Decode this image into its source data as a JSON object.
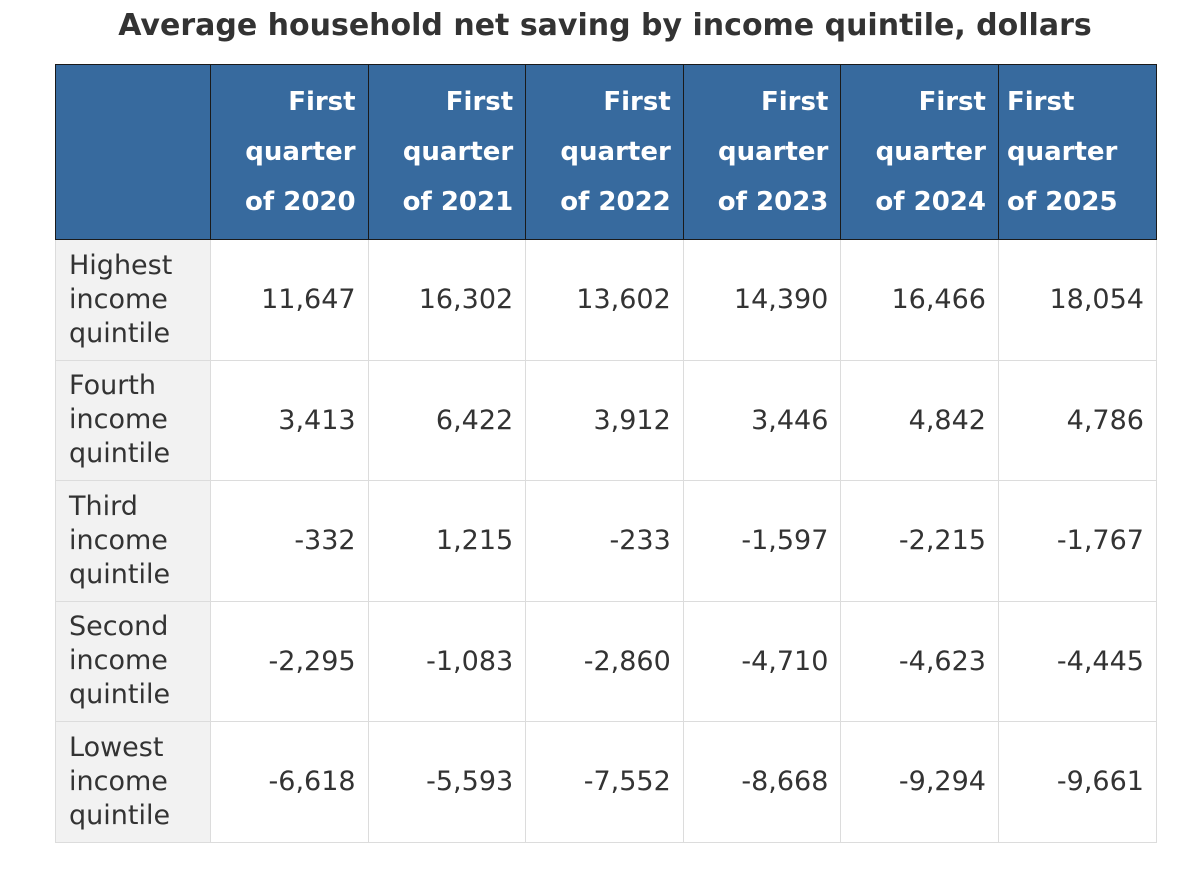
{
  "title": "Average household net saving by income quintile, dollars",
  "table": {
    "columns": [
      [
        "First",
        "quarter",
        "of 2020"
      ],
      [
        "First",
        "quarter",
        "of 2021"
      ],
      [
        "First",
        "quarter",
        "of 2022"
      ],
      [
        "First",
        "quarter",
        "of 2023"
      ],
      [
        "First",
        "quarter",
        "of 2024"
      ],
      [
        "First",
        "quarter",
        "of 2025"
      ]
    ],
    "rows": [
      {
        "label": [
          "Highest",
          "income",
          "quintile"
        ],
        "values": [
          "11,647",
          "16,302",
          "13,602",
          "14,390",
          "16,466",
          "18,054"
        ]
      },
      {
        "label": [
          "Fourth",
          "income",
          "quintile"
        ],
        "values": [
          "3,413",
          "6,422",
          "3,912",
          "3,446",
          "4,842",
          "4,786"
        ]
      },
      {
        "label": [
          "Third",
          "income",
          "quintile"
        ],
        "values": [
          "-332",
          "1,215",
          "-233",
          "-1,597",
          "-2,215",
          "-1,767"
        ]
      },
      {
        "label": [
          "Second",
          "income",
          "quintile"
        ],
        "values": [
          "-2,295",
          "-1,083",
          "-2,860",
          "-4,710",
          "-4,623",
          "-4,445"
        ]
      },
      {
        "label": [
          "Lowest",
          "income",
          "quintile"
        ],
        "values": [
          "-6,618",
          "-5,593",
          "-7,552",
          "-8,668",
          "-9,294",
          "-9,661"
        ]
      }
    ]
  },
  "colors": {
    "header_bg": "#376a9e",
    "header_text": "#ffffff",
    "label_bg": "#f2f2f2",
    "text": "#333333",
    "grid": "#dcdcdc"
  }
}
